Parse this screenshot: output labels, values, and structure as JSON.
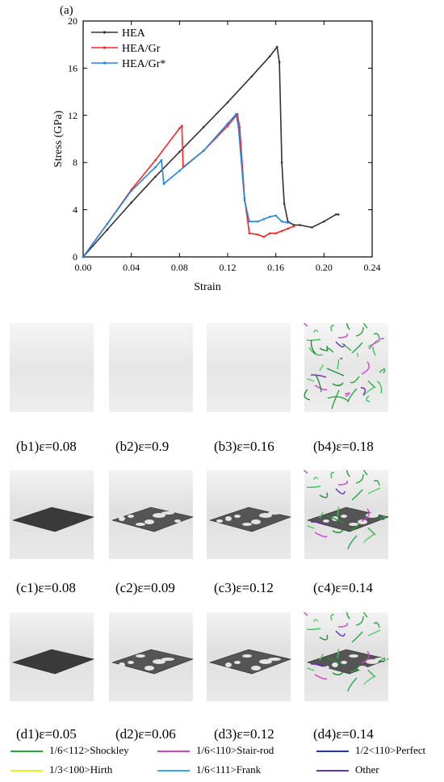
{
  "panel_a_label": "(a)",
  "chart_data": {
    "type": "line",
    "xlabel": "Strain",
    "ylabel": "Stress (GPa)",
    "xlim": [
      0,
      0.24
    ],
    "ylim": [
      0,
      20
    ],
    "xticks": [
      "0.00",
      "0.04",
      "0.08",
      "0.12",
      "0.16",
      "0.20",
      "0.24"
    ],
    "yticks": [
      "0",
      "4",
      "8",
      "12",
      "16",
      "20"
    ],
    "legend_position": "top-left",
    "series": [
      {
        "name": "HEA",
        "color": "#333333",
        "points": [
          [
            0,
            0
          ],
          [
            0.02,
            2.3
          ],
          [
            0.04,
            4.6
          ],
          [
            0.06,
            6.8
          ],
          [
            0.08,
            8.9
          ],
          [
            0.1,
            11.0
          ],
          [
            0.12,
            13.1
          ],
          [
            0.14,
            15.3
          ],
          [
            0.155,
            17.0
          ],
          [
            0.161,
            17.8
          ],
          [
            0.163,
            16.5
          ],
          [
            0.165,
            8
          ],
          [
            0.167,
            4.5
          ],
          [
            0.17,
            3.0
          ],
          [
            0.175,
            2.7
          ],
          [
            0.18,
            2.7
          ],
          [
            0.19,
            2.5
          ],
          [
            0.2,
            3.0
          ],
          [
            0.21,
            3.6
          ],
          [
            0.212,
            3.6
          ]
        ]
      },
      {
        "name": "HEA/Gr",
        "color": "#ff2222",
        "points": [
          [
            0,
            0
          ],
          [
            0.02,
            2.8
          ],
          [
            0.04,
            5.7
          ],
          [
            0.06,
            8.2
          ],
          [
            0.08,
            10.9
          ],
          [
            0.082,
            11.1
          ],
          [
            0.083,
            7.6
          ],
          [
            0.1,
            9.0
          ],
          [
            0.12,
            11.1
          ],
          [
            0.128,
            12.1
          ],
          [
            0.13,
            11.0
          ],
          [
            0.134,
            5.0
          ],
          [
            0.138,
            2.0
          ],
          [
            0.145,
            1.9
          ],
          [
            0.15,
            1.7
          ],
          [
            0.155,
            2.0
          ],
          [
            0.16,
            2.0
          ],
          [
            0.165,
            2.2
          ],
          [
            0.17,
            2.4
          ],
          [
            0.175,
            2.6
          ]
        ]
      },
      {
        "name": "HEA/Gr*",
        "color": "#1e88e5",
        "points": [
          [
            0,
            0
          ],
          [
            0.02,
            2.8
          ],
          [
            0.04,
            5.6
          ],
          [
            0.06,
            7.6
          ],
          [
            0.065,
            8.2
          ],
          [
            0.067,
            6.2
          ],
          [
            0.08,
            7.3
          ],
          [
            0.1,
            9.0
          ],
          [
            0.12,
            11.3
          ],
          [
            0.127,
            12.1
          ],
          [
            0.129,
            11.0
          ],
          [
            0.134,
            4.8
          ],
          [
            0.138,
            3.0
          ],
          [
            0.145,
            3.0
          ],
          [
            0.15,
            3.2
          ],
          [
            0.155,
            3.4
          ],
          [
            0.16,
            3.5
          ],
          [
            0.165,
            3.0
          ],
          [
            0.17,
            2.9
          ]
        ]
      }
    ]
  },
  "snapshot_rows": [
    {
      "row": "b",
      "captions": [
        "(b1)ε=0.08",
        "(b2)ε=0.9",
        "(b3)ε=0.16",
        "(b4)ε=0.18"
      ]
    },
    {
      "row": "c",
      "captions": [
        "(c1)ε=0.08",
        "(c2)ε=0.09",
        "(c3)ε=0.12",
        "(c4)ε=0.14"
      ]
    },
    {
      "row": "d",
      "captions": [
        "(d1)ε=0.05",
        "(d2)ε=0.06",
        "(d3)ε=0.12",
        "(d4)ε=0.14"
      ]
    }
  ],
  "dislocation_legend": [
    {
      "label": "1/6<112>Shockley",
      "color": "#22aa33"
    },
    {
      "label": "1/6<110>Stair-rod",
      "color": "#cc44cc"
    },
    {
      "label": "1/2<110>Perfect",
      "color": "#2233cc"
    },
    {
      "label": "1/3<100>Hirth",
      "color": "#f0f020"
    },
    {
      "label": "1/6<111>Frank",
      "color": "#33aaee"
    },
    {
      "label": "Other",
      "color": "#6633aa"
    }
  ]
}
